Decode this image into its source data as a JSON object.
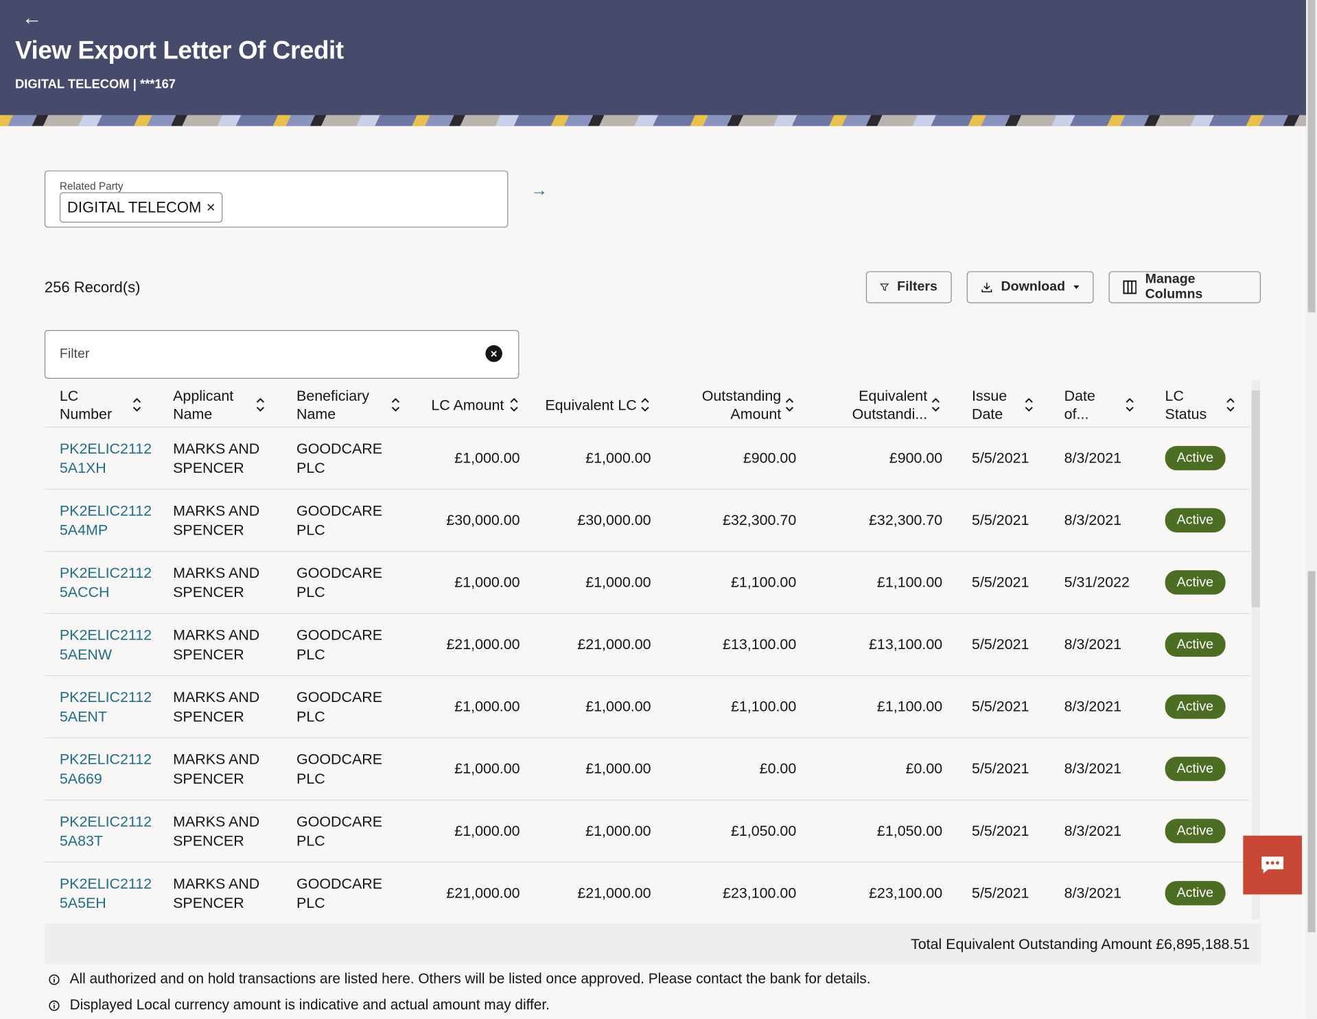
{
  "header": {
    "back_icon": "arrow-left-icon",
    "title": "View Export Letter Of Credit",
    "subtitle": "DIGITAL TELECOM | ***167"
  },
  "related_party": {
    "label": "Related Party",
    "chip": "DIGITAL TELECOM",
    "chip_remove": "×",
    "go_icon": "→"
  },
  "records": "256 Record(s)",
  "toolbar": {
    "filters": "Filters",
    "download": "Download",
    "manage_columns": "Manage Columns"
  },
  "filter": {
    "placeholder": "Filter",
    "clear": "×"
  },
  "columns": [
    "LC Number",
    "Applicant Name",
    "Beneficiary Name",
    "LC Amount",
    "Equivalent LC",
    "Outstanding Amount",
    "Equivalent Outstandi...",
    "Issue Date",
    "Date of...",
    "LC Status"
  ],
  "rows": [
    [
      "PK2ELIC21125A1XH",
      "MARKS AND SPENCER",
      "GOODCARE PLC",
      "£1,000.00",
      "£1,000.00",
      "£900.00",
      "£900.00",
      "5/5/2021",
      "8/3/2021",
      "Active"
    ],
    [
      "PK2ELIC21125A4MP",
      "MARKS AND SPENCER",
      "GOODCARE PLC",
      "£30,000.00",
      "£30,000.00",
      "£32,300.70",
      "£32,300.70",
      "5/5/2021",
      "8/3/2021",
      "Active"
    ],
    [
      "PK2ELIC21125ACCH",
      "MARKS AND SPENCER",
      "GOODCARE PLC",
      "£1,000.00",
      "£1,000.00",
      "£1,100.00",
      "£1,100.00",
      "5/5/2021",
      "5/31/2022",
      "Active"
    ],
    [
      "PK2ELIC21125AENW",
      "MARKS AND SPENCER",
      "GOODCARE PLC",
      "£21,000.00",
      "£21,000.00",
      "£13,100.00",
      "£13,100.00",
      "5/5/2021",
      "8/3/2021",
      "Active"
    ],
    [
      "PK2ELIC21125AENT",
      "MARKS AND SPENCER",
      "GOODCARE PLC",
      "£1,000.00",
      "£1,000.00",
      "£1,100.00",
      "£1,100.00",
      "5/5/2021",
      "8/3/2021",
      "Active"
    ],
    [
      "PK2ELIC21125A669",
      "MARKS AND SPENCER",
      "GOODCARE PLC",
      "£1,000.00",
      "£1,000.00",
      "£0.00",
      "£0.00",
      "5/5/2021",
      "8/3/2021",
      "Active"
    ],
    [
      "PK2ELIC21125A83T",
      "MARKS AND SPENCER",
      "GOODCARE PLC",
      "£1,000.00",
      "£1,000.00",
      "£1,050.00",
      "£1,050.00",
      "5/5/2021",
      "8/3/2021",
      "Active"
    ],
    [
      "PK2ELIC21125A5EH",
      "MARKS AND SPENCER",
      "GOODCARE PLC",
      "£21,000.00",
      "£21,000.00",
      "£23,100.00",
      "£23,100.00",
      "5/5/2021",
      "8/3/2021",
      "Active"
    ]
  ],
  "total": "Total Equivalent Outstanding Amount £6,895,188.51",
  "info": [
    "All authorized and on hold transactions are listed here. Others will be listed once approved. Please contact the bank for details.",
    "Displayed Local currency amount is indicative and actual amount may differ."
  ],
  "colors": {
    "header": "#474b6b",
    "link": "#1c6f8c",
    "active_badge": "#4b6e22",
    "chat": "#c74634"
  }
}
